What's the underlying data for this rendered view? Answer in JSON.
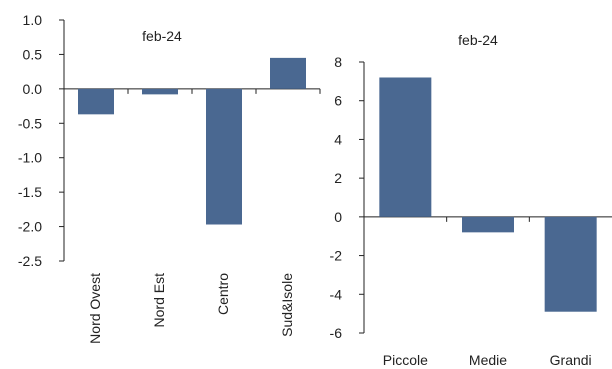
{
  "chart_data": [
    {
      "type": "bar",
      "title": "feb-24",
      "categories": [
        "Nord Ovest",
        "Nord Est",
        "Centro",
        "Sud&Isole"
      ],
      "values": [
        -0.37,
        -0.08,
        -1.97,
        0.45
      ],
      "ylim": [
        -2.5,
        1.0
      ],
      "yticks": [
        "1.0",
        "0.5",
        "0.0",
        "-0.5",
        "-1.0",
        "-1.5",
        "-2.0",
        "-2.5"
      ],
      "ytick_values": [
        1.0,
        0.5,
        0.0,
        -0.5,
        -1.0,
        -1.5,
        -2.0,
        -2.5
      ],
      "xlabel": "",
      "ylabel": "",
      "grid": false,
      "bar_color": "#4a6891"
    },
    {
      "type": "bar",
      "title": "feb-24",
      "categories": [
        "Piccole",
        "Medie",
        "Grandi"
      ],
      "values": [
        7.2,
        -0.8,
        -4.9
      ],
      "ylim": [
        -6,
        8
      ],
      "yticks": [
        "8",
        "6",
        "4",
        "2",
        "0",
        "-2",
        "-4",
        "-6"
      ],
      "ytick_values": [
        8,
        6,
        4,
        2,
        0,
        -2,
        -4,
        -6
      ],
      "xlabel": "",
      "ylabel": "",
      "grid": false,
      "bar_color": "#4a6891"
    }
  ]
}
